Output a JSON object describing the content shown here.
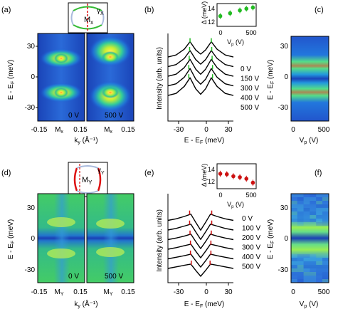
{
  "panels": {
    "a": {
      "label": "(a)",
      "voltages": [
        "0 V",
        "500 V"
      ],
      "xticks": [
        "-0.15",
        "M",
        "0.15"
      ],
      "xsub": "x",
      "xlabel": "k",
      "xlabel_sub": "y",
      "xlabel_unit": "(Å⁻¹)",
      "ylabel": "E - E",
      "ylabel_sub": "F",
      "ylabel_unit": "(meV)",
      "yticks": [
        "30",
        "0",
        "-30"
      ],
      "inset": {
        "gamma": "γ",
        "gamma_sub": "X",
        "point": "M",
        "point_sub": "x"
      }
    },
    "b": {
      "label": "(b)",
      "ylabel": "Intensity (arb. units)",
      "xlabel": "E - E",
      "xlabel_sub": "F",
      "xlabel_unit": "(meV)",
      "xticks": [
        "-30",
        "0",
        "30"
      ],
      "curve_labels": [
        "0 V",
        "150 V",
        "300 V",
        "400 V",
        "500 V"
      ],
      "inset": {
        "ylabel": "Δ (meV)",
        "xlabel": "V",
        "xlabel_sub": "p",
        "xlabel_unit": "(V)",
        "yticks": [
          "14",
          "12"
        ],
        "xticks": [
          "0",
          "500"
        ]
      }
    },
    "c": {
      "label": "(c)",
      "ylabel": "E - E",
      "ylabel_sub": "F",
      "ylabel_unit": "(meV)",
      "yticks": [
        "30",
        "0",
        "-30"
      ],
      "xticks": [
        "0",
        "500"
      ],
      "xlabel": "V",
      "xlabel_sub": "p",
      "xlabel_unit": "(V)"
    },
    "d": {
      "label": "(d)",
      "voltages": [
        "0 V",
        "500 V"
      ],
      "xticks": [
        "-0.15",
        "M",
        "0.15"
      ],
      "xsub": "Y",
      "xlabel": "k",
      "xlabel_sub": "y",
      "xlabel_unit": "(Å⁻¹)",
      "ylabel": "E - E",
      "ylabel_sub": "F",
      "ylabel_unit": "(meV)",
      "yticks": [
        "30",
        "0",
        "-30"
      ],
      "inset": {
        "gamma": "γ",
        "gamma_sub": "Y",
        "point": "M",
        "point_sub": "Y"
      }
    },
    "e": {
      "label": "(e)",
      "ylabel": "Intensity (arb. units)",
      "xlabel": "E - E",
      "xlabel_sub": "F",
      "xlabel_unit": "(meV)",
      "xticks": [
        "-30",
        "0",
        "30"
      ],
      "curve_labels": [
        "0 V",
        "100 V",
        "200 V",
        "300 V",
        "400 V",
        "500 V"
      ],
      "inset": {
        "ylabel": "Δ (meV)",
        "xlabel": "V",
        "xlabel_sub": "p",
        "xlabel_unit": "(V)",
        "yticks": [
          "14",
          "12"
        ],
        "xticks": [
          "0",
          "500"
        ]
      }
    },
    "f": {
      "label": "(f)",
      "ylabel": "E - E",
      "ylabel_sub": "F",
      "ylabel_unit": "(meV)",
      "yticks": [
        "30",
        "0",
        "-30"
      ],
      "xticks": [
        "0",
        "500"
      ],
      "xlabel": "V",
      "xlabel_sub": "p",
      "xlabel_unit": "(V)"
    }
  },
  "colors": {
    "gap_x": "#33cc33",
    "gap_y": "#dd1111",
    "marker_x": "#22bb22",
    "marker_y": "#cc1111"
  },
  "chart_data": [
    {
      "type": "heatmap",
      "panel": "a",
      "x_range": [
        -0.2,
        0.2
      ],
      "ylim": [
        -45,
        45
      ],
      "voltages": [
        0,
        500
      ],
      "features": {
        "peak_energies_meV": [
          13,
          -13
        ]
      }
    },
    {
      "type": "line",
      "panel": "b",
      "xlim": [
        -40,
        40
      ],
      "x": [
        -40,
        -30,
        -20,
        -13,
        -6,
        0,
        6,
        13,
        20,
        30,
        40
      ],
      "series": [
        {
          "name": "0 V",
          "values": [
            0.55,
            0.6,
            0.74,
            0.92,
            0.72,
            0.62,
            0.72,
            0.92,
            0.74,
            0.6,
            0.55
          ],
          "peak_positions": [
            -13,
            13
          ]
        },
        {
          "name": "150 V",
          "values": [
            0.55,
            0.6,
            0.75,
            0.94,
            0.72,
            0.61,
            0.72,
            0.94,
            0.75,
            0.6,
            0.55
          ],
          "peak_positions": [
            -13.5,
            13.5
          ]
        },
        {
          "name": "300 V",
          "values": [
            0.55,
            0.6,
            0.76,
            0.96,
            0.72,
            0.6,
            0.72,
            0.96,
            0.76,
            0.6,
            0.55
          ],
          "peak_positions": [
            -14,
            14
          ]
        },
        {
          "name": "400 V",
          "values": [
            0.55,
            0.6,
            0.76,
            0.97,
            0.71,
            0.59,
            0.71,
            0.97,
            0.76,
            0.6,
            0.55
          ],
          "peak_positions": [
            -14.5,
            14.5
          ]
        },
        {
          "name": "500 V",
          "values": [
            0.55,
            0.6,
            0.77,
            0.98,
            0.71,
            0.58,
            0.71,
            0.98,
            0.77,
            0.6,
            0.55
          ],
          "peak_positions": [
            -14.5,
            14.5
          ]
        }
      ]
    },
    {
      "type": "scatter",
      "panel": "b-inset",
      "xlim": [
        -50,
        550
      ],
      "ylim": [
        11.5,
        15.5
      ],
      "x": [
        0,
        150,
        300,
        400,
        500
      ],
      "values": [
        13.3,
        13.8,
        14.3,
        14.6,
        14.8
      ],
      "errors": [
        0.5,
        0.5,
        0.5,
        0.5,
        0.5
      ]
    },
    {
      "type": "heatmap",
      "panel": "c",
      "xlim": [
        -50,
        550
      ],
      "ylim": [
        -45,
        45
      ],
      "bands_meV": [
        13,
        -13
      ]
    },
    {
      "type": "heatmap",
      "panel": "d",
      "x_range": [
        -0.2,
        0.2
      ],
      "ylim": [
        -45,
        45
      ],
      "voltages": [
        0,
        500
      ],
      "features": {
        "peak_energies_meV": [
          12,
          -12
        ]
      }
    },
    {
      "type": "line",
      "panel": "e",
      "xlim": [
        -40,
        40
      ],
      "x": [
        -40,
        -30,
        -20,
        -12,
        -6,
        0,
        6,
        12,
        20,
        30,
        40
      ],
      "series": [
        {
          "name": "0 V",
          "values": [
            0.7,
            0.74,
            0.8,
            0.86,
            0.65,
            0.45,
            0.65,
            0.86,
            0.8,
            0.74,
            0.7
          ],
          "peak_positions": [
            -13.5,
            13.5
          ]
        },
        {
          "name": "100 V",
          "values": [
            0.7,
            0.74,
            0.8,
            0.85,
            0.65,
            0.46,
            0.65,
            0.85,
            0.8,
            0.74,
            0.7
          ],
          "peak_positions": [
            -13.5,
            13.5
          ]
        },
        {
          "name": "200 V",
          "values": [
            0.7,
            0.74,
            0.79,
            0.84,
            0.65,
            0.47,
            0.65,
            0.84,
            0.79,
            0.74,
            0.7
          ],
          "peak_positions": [
            -13,
            13
          ]
        },
        {
          "name": "300 V",
          "values": [
            0.7,
            0.74,
            0.79,
            0.83,
            0.65,
            0.48,
            0.65,
            0.83,
            0.79,
            0.74,
            0.7
          ],
          "peak_positions": [
            -12.5,
            12.5
          ]
        },
        {
          "name": "400 V",
          "values": [
            0.7,
            0.74,
            0.78,
            0.82,
            0.65,
            0.49,
            0.65,
            0.82,
            0.78,
            0.74,
            0.7
          ],
          "peak_positions": [
            -12.5,
            12.5
          ]
        },
        {
          "name": "500 V",
          "values": [
            0.7,
            0.74,
            0.78,
            0.81,
            0.65,
            0.5,
            0.65,
            0.81,
            0.78,
            0.74,
            0.7
          ],
          "peak_positions": [
            -11.5,
            11.5
          ]
        }
      ]
    },
    {
      "type": "scatter",
      "panel": "e-inset",
      "xlim": [
        -50,
        550
      ],
      "ylim": [
        10.5,
        15.5
      ],
      "x": [
        0,
        100,
        200,
        300,
        400,
        500
      ],
      "values": [
        13.5,
        13.4,
        13.0,
        12.8,
        12.5,
        11.7
      ],
      "errors": [
        0.6,
        0.6,
        0.6,
        0.6,
        0.6,
        0.6
      ]
    },
    {
      "type": "heatmap",
      "panel": "f",
      "xlim": [
        -50,
        550
      ],
      "ylim": [
        -45,
        45
      ],
      "bands_meV": [
        12,
        -12
      ]
    }
  ]
}
